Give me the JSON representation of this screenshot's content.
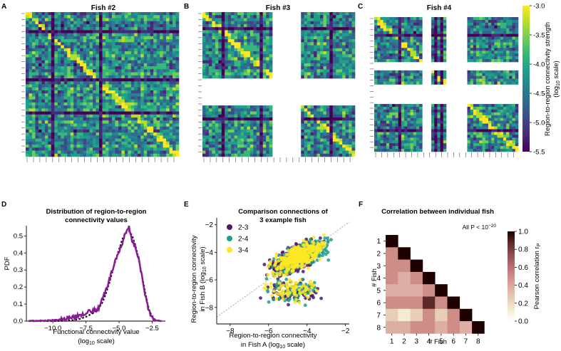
{
  "panel_letters": [
    "A",
    "B",
    "C",
    "D",
    "E",
    "F"
  ],
  "colors": {
    "viridis": [
      "#440154",
      "#482878",
      "#3e4989",
      "#31688e",
      "#26828e",
      "#1f9e89",
      "#35b779",
      "#6ece58",
      "#b5de2b",
      "#fde725"
    ],
    "pink": [
      "#ffffff",
      "#f4ecd0",
      "#e7cfb6",
      "#ddaea4",
      "#cf8d88",
      "#b8696f",
      "#8c4b4e",
      "#5a2a2a",
      "#1e0000"
    ],
    "series": [
      "#4b1a6b",
      "#1f9e89",
      "#fde725"
    ],
    "pdf_line": "#8b1a96",
    "fit_line": "#000000",
    "diag_line": "#aaaaaa"
  },
  "panels_abc": {
    "titles": [
      "Fish #2",
      "Fish #3",
      "Fish #4"
    ],
    "colorbar_ticks": [
      "-3.0",
      "-3.5",
      "-4.0",
      "-4.5",
      "-5.0",
      "-5.5"
    ],
    "colorbar_label": "Region-to-region connectivity strength",
    "colorbar_label2": "(log",
    "colorbar_label_sub": "10",
    "colorbar_label3": " scale)"
  },
  "chart_data": [
    {
      "type": "line",
      "panel": "D",
      "title": [
        "Distribution of region-to-region",
        "connectivity values"
      ],
      "xlabel": "Functional connectivity value",
      "xlabel2_pre": "(log",
      "xlabel2_sub": "10",
      "xlabel2_post": " scale)",
      "ylabel": "PDF",
      "xlim": [
        -12,
        -1.5
      ],
      "ylim": [
        0,
        0.56
      ],
      "xticks": [
        -10.0,
        -7.5,
        -5.0,
        -2.5
      ],
      "xtick_labels": [
        "−10.0",
        "−7.5",
        "−5.0",
        "−2.5"
      ],
      "yticks": [
        0.0,
        0.1,
        0.2,
        0.3,
        0.4,
        0.5
      ],
      "ytick_labels": [
        "0.0",
        "0.1",
        "0.2",
        "0.3",
        "0.4",
        "0.5"
      ],
      "x": [
        -11.8,
        -11.0,
        -10.5,
        -10.0,
        -9.5,
        -9.0,
        -8.5,
        -8.0,
        -7.5,
        -7.0,
        -6.75,
        -6.5,
        -6.25,
        -6.0,
        -5.75,
        -5.5,
        -5.25,
        -5.0,
        -4.75,
        -4.5,
        -4.25,
        -4.0,
        -3.75,
        -3.5,
        -3.25,
        -3.0,
        -2.75,
        -2.5,
        -2.25,
        -2.0,
        -1.8
      ],
      "y": [
        0.0,
        0.002,
        0.003,
        0.006,
        0.008,
        0.015,
        0.02,
        0.035,
        0.05,
        0.06,
        0.065,
        0.08,
        0.13,
        0.18,
        0.24,
        0.3,
        0.36,
        0.41,
        0.46,
        0.52,
        0.55,
        0.47,
        0.43,
        0.36,
        0.26,
        0.15,
        0.06,
        0.02,
        0.006,
        0.001,
        0.0
      ],
      "fit_y": [
        0.0,
        0.0,
        0.0,
        0.0,
        0.001,
        0.002,
        0.005,
        0.012,
        0.025,
        0.045,
        0.06,
        0.08,
        0.11,
        0.16,
        0.22,
        0.29,
        0.36,
        0.42,
        0.48,
        0.52,
        0.53,
        0.5,
        0.44,
        0.36,
        0.26,
        0.16,
        0.07,
        0.025,
        0.006,
        0.001,
        0.0
      ]
    },
    {
      "type": "scatter",
      "panel": "E",
      "title": [
        "Comparison connections of",
        "3 example fish"
      ],
      "xlabel": "Region-to-region connectivity",
      "xlabel2_pre": "in Fish A (log",
      "xlabel2_sub": "10",
      "xlabel2_post": " scale)",
      "ylabel": "Region-to-region connectivity",
      "ylabel2_pre": "in Fish B (log",
      "ylabel2_sub": "10",
      "ylabel2_post": " scale)",
      "xlim": [
        -8.7,
        -1.8
      ],
      "ylim": [
        -9.2,
        -1.5
      ],
      "xticks": [
        -8,
        -6,
        -4,
        -2
      ],
      "xtick_labels": [
        "−8",
        "−6",
        "−4",
        "−2"
      ],
      "yticks": [
        -8,
        -6,
        -4,
        -2
      ],
      "ytick_labels": [
        "−8",
        "−6",
        "−4",
        "−2"
      ],
      "legend_position": "top-left",
      "series": [
        {
          "name": "2-3",
          "cx": -4.6,
          "cy": -4.3,
          "n": 420
        },
        {
          "name": "2-4",
          "cx": -4.3,
          "cy": -4.5,
          "n": 420
        },
        {
          "name": "3-4",
          "cx": -4.4,
          "cy": -4.7,
          "n": 420
        }
      ]
    },
    {
      "type": "heatmap",
      "panel": "F",
      "title": "Correlation between individual fish",
      "xlabel": "# Fish",
      "ylabel": "# Fish",
      "annotation_pre": "All P < 10",
      "annotation_sup": "−20",
      "labels": [
        "1",
        "2",
        "3",
        "4",
        "5",
        "6",
        "7",
        "8"
      ],
      "colorbar_ticks": [
        0.0,
        0.2,
        0.4,
        0.6,
        0.8,
        1.0
      ],
      "colorbar_tick_labels": [
        "0.0",
        "0.2",
        "0.4",
        "0.6",
        "0.8",
        "1.0"
      ],
      "colorbar_label": "Pearson correlation r",
      "colorbar_label_sub": "P",
      "matrix": [
        [
          1.0
        ],
        [
          0.48,
          1.0
        ],
        [
          0.5,
          0.52,
          1.0
        ],
        [
          0.45,
          0.44,
          0.5,
          1.0
        ],
        [
          0.38,
          0.4,
          0.42,
          0.48,
          1.0
        ],
        [
          0.52,
          0.5,
          0.55,
          0.78,
          0.45,
          1.0
        ],
        [
          0.28,
          0.22,
          0.3,
          0.45,
          0.25,
          0.5,
          1.0
        ],
        [
          0.42,
          0.43,
          0.45,
          0.5,
          0.4,
          0.55,
          0.38,
          1.0
        ]
      ]
    }
  ]
}
